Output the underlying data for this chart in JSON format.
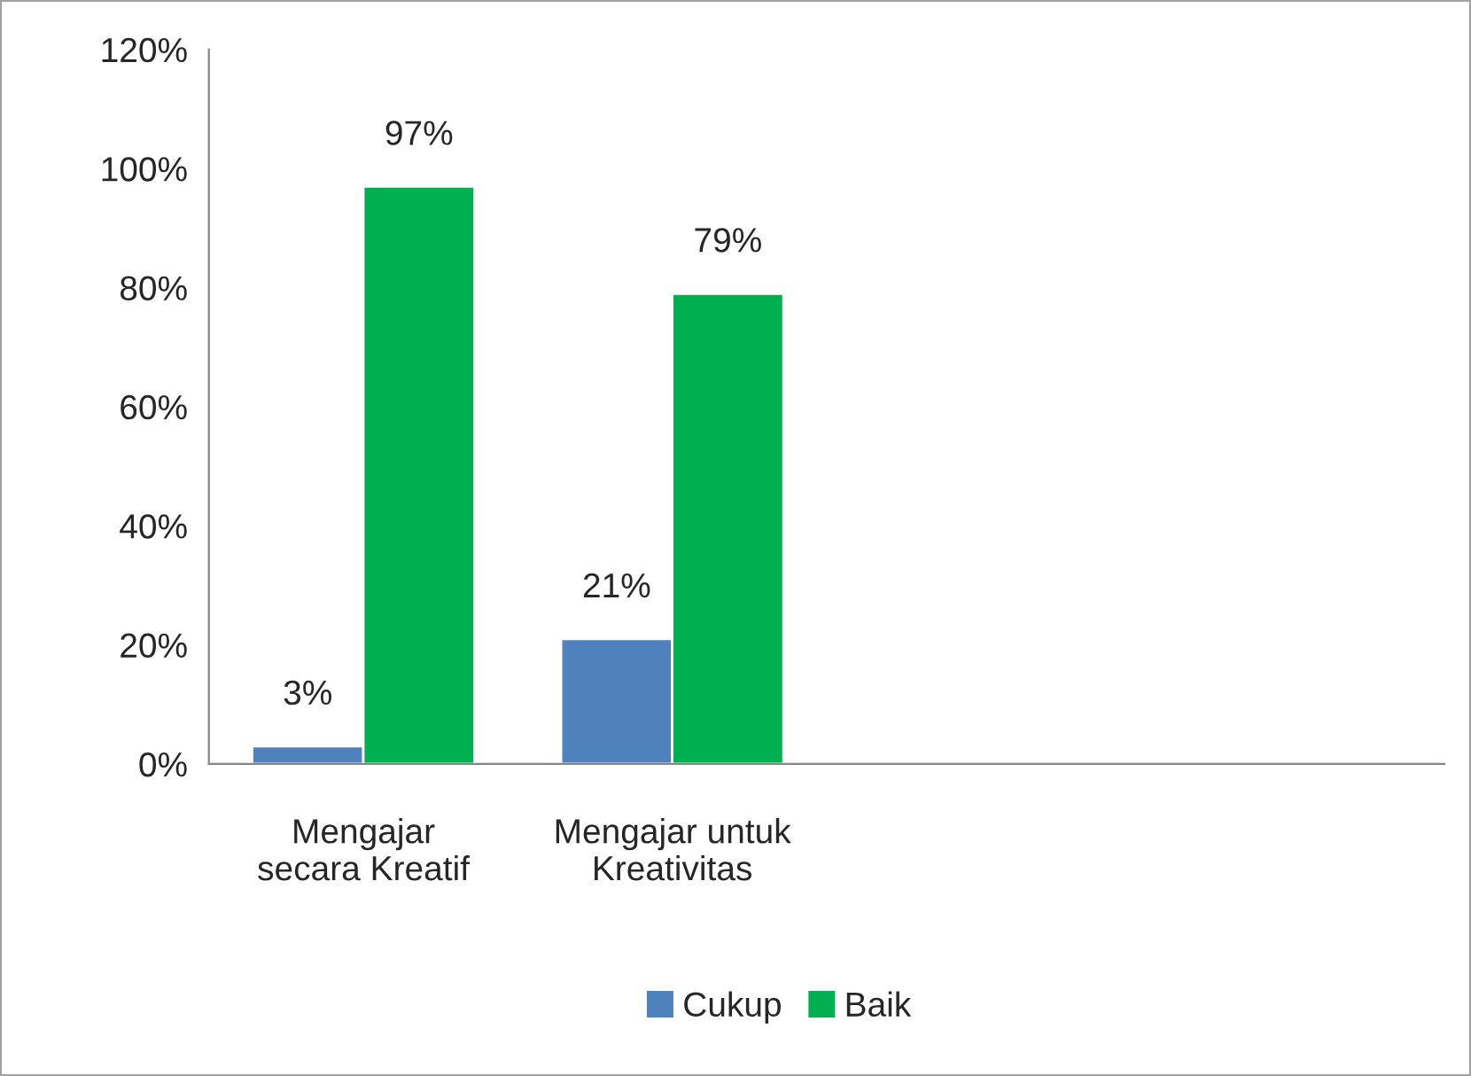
{
  "chart_data": {
    "type": "bar",
    "categories": [
      "Mengajar\nsecara Kreatif",
      "Mengajar untuk\nKreativitas",
      null,
      null
    ],
    "series": [
      {
        "name": "Cukup",
        "color": "#4f81bd",
        "values": [
          3,
          21,
          null,
          null
        ],
        "value_labels": [
          "3%",
          "21%",
          null,
          null
        ]
      },
      {
        "name": "Baik",
        "color": "#00b050",
        "values": [
          97,
          79,
          null,
          null
        ],
        "value_labels": [
          "97%",
          "79%",
          null,
          null
        ]
      }
    ],
    "ylim": [
      0,
      120
    ],
    "yticks": [
      {
        "value": 0,
        "label": "0%"
      },
      {
        "value": 20,
        "label": "20%"
      },
      {
        "value": 40,
        "label": "40%"
      },
      {
        "value": 60,
        "label": "60%"
      },
      {
        "value": 80,
        "label": "80%"
      },
      {
        "value": 100,
        "label": "100%"
      },
      {
        "value": 120,
        "label": "120%"
      }
    ],
    "grid": false,
    "legend": "bottom"
  }
}
